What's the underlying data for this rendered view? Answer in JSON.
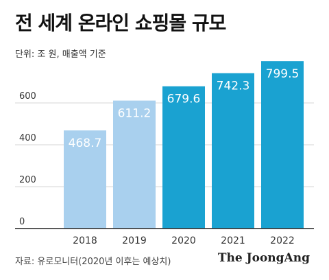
{
  "header": {
    "title": "전 세계 온라인 쇼핑몰 규모",
    "unit": "단위: 조 원, 매출액 기준"
  },
  "footer": {
    "source": "자료: 유로모니터(2020년 이후는 예상치)",
    "brand": "The JoongAng"
  },
  "colors": {
    "actual": "#a9d0ee",
    "forecast": "#1aa2d1",
    "label": "#ffffff",
    "axis": "#222222",
    "grid": "#d4d4d4",
    "tick": "#333333"
  },
  "chart_data": {
    "type": "bar",
    "categories": [
      "2018",
      "2019",
      "2020",
      "2021",
      "2022"
    ],
    "values": [
      468.7,
      611.2,
      679.6,
      742.3,
      799.5
    ],
    "labels": [
      "468.7",
      "611.2",
      "679.6",
      "742.3",
      "799.5"
    ],
    "forecast": [
      false,
      false,
      true,
      true,
      true
    ],
    "yticks": [
      0,
      200,
      400,
      600
    ],
    "ylim": [
      0,
      800
    ],
    "grid": true,
    "title": "전 세계 온라인 쇼핑몰 규모",
    "ylabel": "단위: 조 원, 매출액 기준",
    "xlabel": ""
  }
}
